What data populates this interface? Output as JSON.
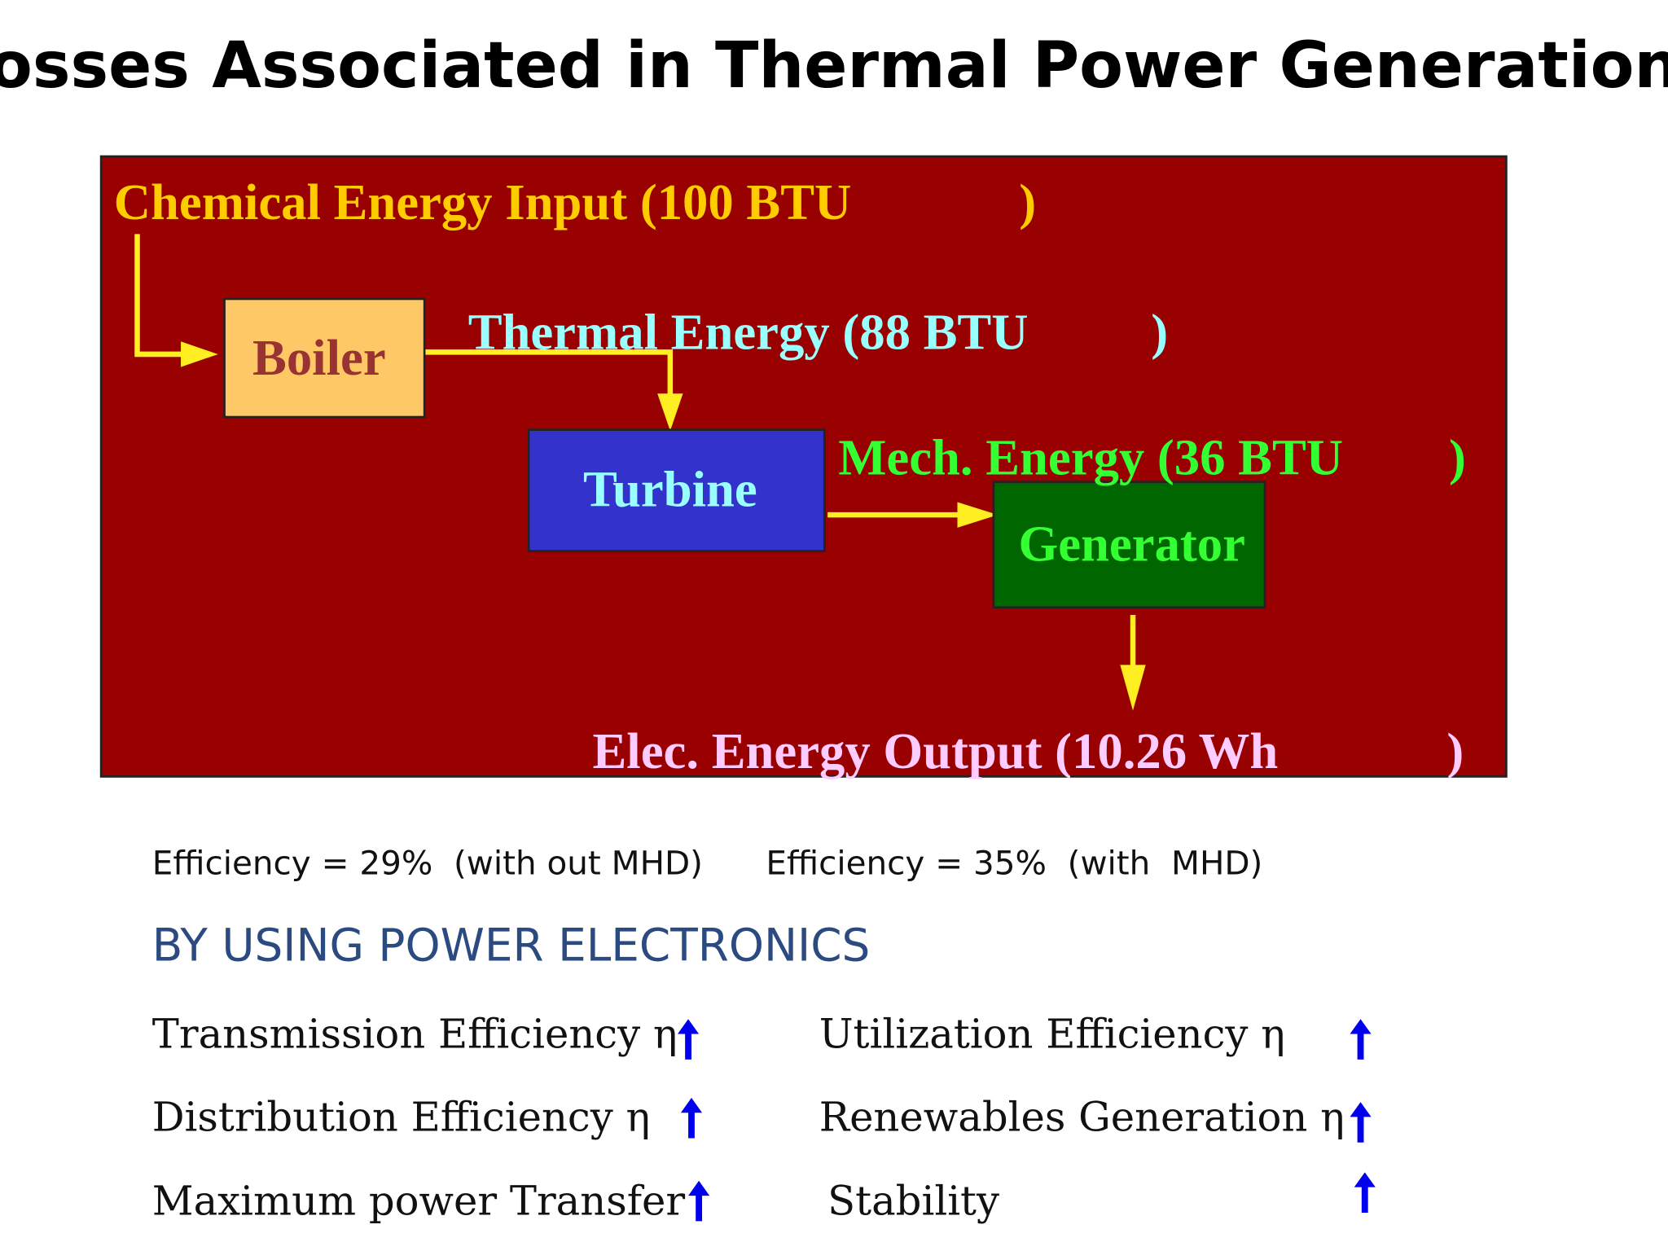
{
  "title": "Losses Associated in Thermal Power Generation",
  "diagram": {
    "input": {
      "text": "Chemical Energy Input (100 BTU",
      "close": ")"
    },
    "boiler": "Boiler",
    "thermal": {
      "text": "Thermal Energy (88 BTU",
      "close": ")"
    },
    "turbine": "Turbine",
    "mechanical": {
      "text": "Mech. Energy (36 BTU",
      "close": ")"
    },
    "generator": "Generator",
    "output": {
      "text": "Elec. Energy Output (10.26 Wh",
      "close": ")"
    }
  },
  "efficiency": [
    "Efficiency = 29%  (with out MHD)",
    "Efficiency = 35%  (with  MHD)"
  ],
  "heading": "BY USING POWER ELECTRONICS",
  "benefits": {
    "left": [
      "Transmission Efficiency η",
      "Distribution Efficiency η",
      "Maximum power Transfer"
    ],
    "right": [
      "Utilization Efficiency η",
      "Renewables Generation η",
      "Stability"
    ]
  }
}
